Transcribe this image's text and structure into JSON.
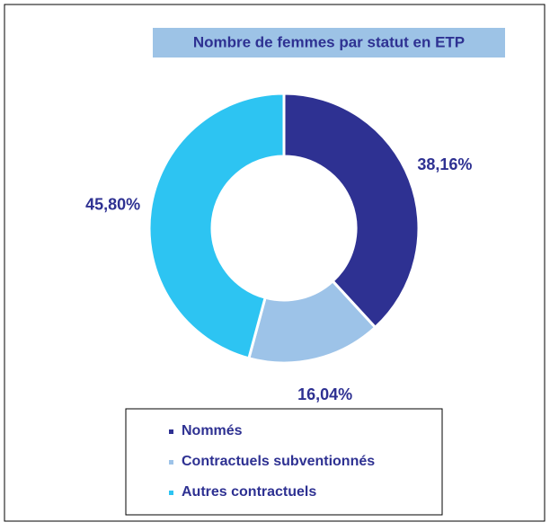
{
  "chart_data": {
    "type": "donut",
    "title": "Nombre de femmes par statut en ETP",
    "categories": [
      "Nommés",
      "Contractuels subventionnés",
      "Autres contractuels"
    ],
    "values": [
      38.16,
      16.04,
      45.8
    ],
    "value_labels": [
      "38,16%",
      "16,04%",
      "45,80%"
    ],
    "colors": [
      "#2e3192",
      "#9dc3e8",
      "#2dc4f2"
    ],
    "legend": "bottom"
  }
}
